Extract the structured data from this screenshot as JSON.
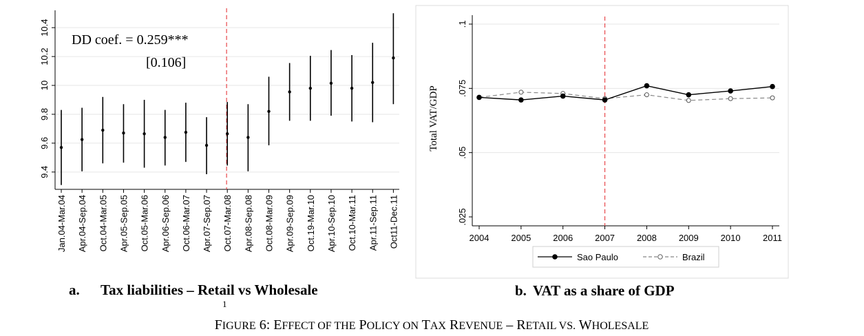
{
  "figure": {
    "caption_big_1": "F",
    "caption_small_1": "IGURE",
    "caption_big_2": " 6: E",
    "caption_small_2": "FFECT OF THE",
    "caption_big_3": " P",
    "caption_small_3": "OLICY ON",
    "caption_big_4": " T",
    "caption_small_4": "AX",
    "caption_big_5": " R",
    "caption_small_5": "EVENUE",
    "caption_big_6": " – R",
    "caption_small_6": "ETAIL VS.",
    "caption_big_7": " W",
    "caption_small_7": "HOLESALE",
    "stray_mark": "1"
  },
  "chart_data": [
    {
      "type": "errorbar",
      "panel_label": "a.",
      "title": "Tax liabilities – Retail vs Wholesale",
      "annotation_line1": "DD coef. = 0.259***",
      "annotation_line2": "[0.106]",
      "categories": [
        "Jan.04-Mar.04",
        "Apr.04-Sep.04",
        "Oct.04-Mar.05",
        "Apr.05-Sep.05",
        "Oct.05-Mar.06",
        "Apr.06-Sep.06",
        "Oct.06-Mar.07",
        "Apr.07-Sep.07",
        "Oct.07-Mar.08",
        "Apr.08-Sep.08",
        "Oct.08-Mar.09",
        "Apr.09-Sep.09",
        "Oct.19-Mar.10",
        "Apr.10-Sep.10",
        "Oct.10-Mar.11",
        "Apr.11-Sep.11",
        "Oct11-Dec.11"
      ],
      "values": [
        9.57,
        9.625,
        9.69,
        9.67,
        9.665,
        9.64,
        9.675,
        9.585,
        9.665,
        9.64,
        9.82,
        9.955,
        9.98,
        10.015,
        9.98,
        10.02,
        10.19
      ],
      "lower": [
        9.31,
        9.405,
        9.46,
        9.465,
        9.43,
        9.445,
        9.47,
        9.385,
        9.445,
        9.405,
        9.585,
        9.755,
        9.755,
        9.79,
        9.75,
        9.745,
        9.87
      ],
      "upper": [
        9.83,
        9.845,
        9.92,
        9.87,
        9.9,
        9.83,
        9.88,
        9.78,
        9.885,
        9.87,
        10.06,
        10.155,
        10.205,
        10.245,
        10.21,
        10.295,
        10.5
      ],
      "yticks": [
        "9.4",
        "9.6",
        "9.8",
        "10",
        "10.2",
        "10.4"
      ],
      "ytick_values": [
        9.4,
        9.6,
        9.8,
        10,
        10.2,
        10.4
      ],
      "ylim": [
        9.28,
        10.52
      ],
      "vline_after_category_index": 8,
      "grid": true,
      "colors": {
        "markers": "#000000",
        "vline": "#e8474b",
        "grid": "#e6e6e6"
      }
    },
    {
      "type": "line",
      "panel_label": "b.",
      "title": "VAT as a share of GDP",
      "ylabel": "Total VAT/GDP",
      "x": [
        2004,
        2005,
        2006,
        2007,
        2008,
        2009,
        2010,
        2011
      ],
      "xticks": [
        "2004",
        "2005",
        "2006",
        "2007",
        "2008",
        "2009",
        "2010",
        "2011"
      ],
      "yticks": [
        ".025",
        ".05",
        ".075",
        ".1"
      ],
      "ytick_values": [
        0.025,
        0.05,
        0.075,
        0.1
      ],
      "ylim": [
        0.025,
        0.1
      ],
      "vline_x": 2007,
      "grid": true,
      "legend_position": "bottom",
      "series": [
        {
          "name": "Sao Paulo",
          "values": [
            0.0715,
            0.0705,
            0.072,
            0.0705,
            0.076,
            0.0725,
            0.074,
            0.0757
          ],
          "style": "solid-filled",
          "color": "#000000"
        },
        {
          "name": "Brazil",
          "values": [
            0.0715,
            0.0735,
            0.073,
            0.071,
            0.0725,
            0.0703,
            0.071,
            0.0713
          ],
          "style": "dashed-hollow",
          "color": "#888888"
        }
      ],
      "colors": {
        "vline": "#e8474b",
        "grid": "#e6e6e6",
        "frame": "#dcdcdc"
      }
    }
  ]
}
